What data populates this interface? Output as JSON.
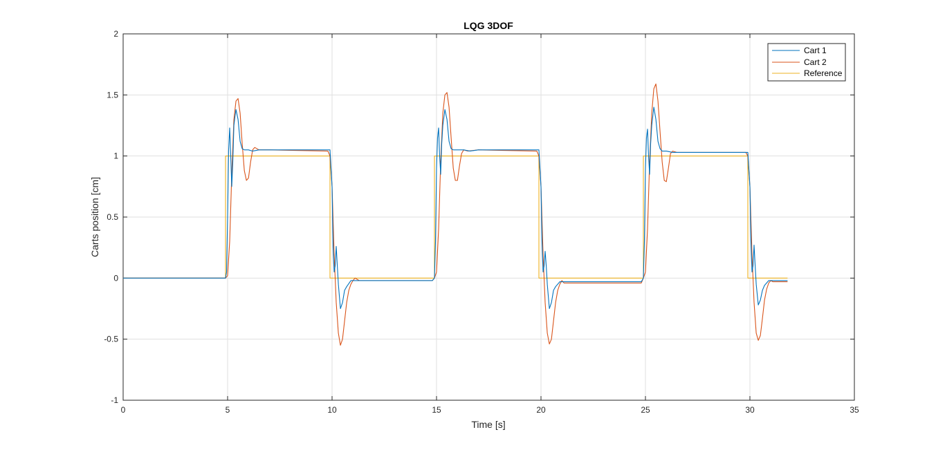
{
  "chart_data": {
    "type": "line",
    "title": "LQG 3DOF",
    "xlabel": "Time [s]",
    "ylabel": "Carts position [cm]",
    "xlim": [
      0,
      35
    ],
    "ylim": [
      -1,
      2
    ],
    "xticks": [
      0,
      5,
      10,
      15,
      20,
      25,
      30,
      35
    ],
    "yticks": [
      -1,
      -0.5,
      0,
      0.5,
      1,
      1.5,
      2
    ],
    "xtick_labels": [
      "0",
      "5",
      "10",
      "15",
      "20",
      "25",
      "30",
      "35"
    ],
    "ytick_labels": [
      "-1",
      "-0.5",
      "0",
      "0.5",
      "1",
      "1.5",
      "2"
    ],
    "grid": true,
    "legend_position": "top-right",
    "series": [
      {
        "name": "Cart 1",
        "color": "#0072BD",
        "x": [
          0,
          4.9,
          4.95,
          5.0,
          5.05,
          5.1,
          5.15,
          5.2,
          5.25,
          5.3,
          5.35,
          5.4,
          5.5,
          5.6,
          5.7,
          5.8,
          6.0,
          6.2,
          6.5,
          7.0,
          9.8,
          9.9,
          10.0,
          10.05,
          10.1,
          10.15,
          10.2,
          10.25,
          10.3,
          10.4,
          10.5,
          10.6,
          10.7,
          10.9,
          11.2,
          14.8,
          14.9,
          14.95,
          15.0,
          15.05,
          15.1,
          15.15,
          15.2,
          15.25,
          15.3,
          15.4,
          15.5,
          15.6,
          15.7,
          15.8,
          16.0,
          16.3,
          16.6,
          17.0,
          19.8,
          19.9,
          20.0,
          20.05,
          20.1,
          20.15,
          20.2,
          20.25,
          20.3,
          20.4,
          20.5,
          20.6,
          20.7,
          20.9,
          21.2,
          24.8,
          24.9,
          24.95,
          25.0,
          25.05,
          25.1,
          25.15,
          25.2,
          25.25,
          25.3,
          25.4,
          25.5,
          25.6,
          25.7,
          25.8,
          26.0,
          26.3,
          26.6,
          27.0,
          29.8,
          29.9,
          30.0,
          30.05,
          30.1,
          30.15,
          30.2,
          30.25,
          30.3,
          30.4,
          30.5,
          30.6,
          30.7,
          30.9,
          31.2,
          31.8
        ],
        "y": [
          0,
          0,
          0.05,
          0.5,
          1.05,
          1.23,
          1.0,
          0.75,
          0.95,
          1.25,
          1.32,
          1.38,
          1.3,
          1.12,
          1.06,
          1.05,
          1.05,
          1.04,
          1.05,
          1.05,
          1.05,
          1.05,
          0.75,
          0.25,
          0.05,
          0.1,
          0.26,
          0.1,
          -0.05,
          -0.25,
          -0.2,
          -0.1,
          -0.07,
          -0.02,
          -0.02,
          -0.02,
          0.0,
          0.3,
          0.9,
          1.15,
          1.23,
          1.0,
          0.85,
          1.1,
          1.25,
          1.38,
          1.3,
          1.12,
          1.06,
          1.05,
          1.05,
          1.05,
          1.04,
          1.05,
          1.05,
          1.05,
          0.75,
          0.3,
          0.05,
          0.1,
          0.22,
          0.1,
          -0.05,
          -0.25,
          -0.2,
          -0.1,
          -0.07,
          -0.03,
          -0.03,
          -0.03,
          0.0,
          0.3,
          0.9,
          1.15,
          1.22,
          1.0,
          0.85,
          1.1,
          1.25,
          1.4,
          1.3,
          1.12,
          1.06,
          1.04,
          1.04,
          1.03,
          1.03,
          1.03,
          1.03,
          1.03,
          0.75,
          0.3,
          0.05,
          0.1,
          0.27,
          0.1,
          -0.05,
          -0.22,
          -0.18,
          -0.1,
          -0.06,
          -0.02,
          -0.02,
          -0.02
        ]
      },
      {
        "name": "Cart 2",
        "color": "#D95319",
        "x": [
          0,
          4.9,
          5.0,
          5.1,
          5.2,
          5.3,
          5.4,
          5.5,
          5.6,
          5.7,
          5.8,
          5.9,
          6.0,
          6.1,
          6.2,
          6.3,
          6.5,
          7.0,
          9.8,
          9.9,
          10.0,
          10.1,
          10.2,
          10.3,
          10.4,
          10.5,
          10.6,
          10.7,
          10.8,
          10.9,
          11.0,
          11.1,
          11.3,
          11.6,
          14.8,
          14.9,
          15.0,
          15.1,
          15.2,
          15.3,
          15.4,
          15.5,
          15.6,
          15.7,
          15.8,
          15.9,
          16.0,
          16.1,
          16.2,
          16.3,
          16.5,
          17.0,
          19.8,
          19.9,
          20.0,
          20.1,
          20.2,
          20.3,
          20.4,
          20.5,
          20.6,
          20.7,
          20.8,
          20.9,
          21.0,
          21.1,
          21.3,
          21.6,
          24.8,
          24.9,
          25.0,
          25.1,
          25.2,
          25.3,
          25.4,
          25.5,
          25.6,
          25.7,
          25.8,
          25.9,
          26.0,
          26.1,
          26.2,
          26.3,
          26.5,
          27.0,
          29.8,
          29.9,
          30.0,
          30.1,
          30.2,
          30.3,
          30.4,
          30.5,
          30.6,
          30.7,
          30.8,
          30.9,
          31.0,
          31.1,
          31.3,
          31.8
        ],
        "y": [
          0,
          0,
          0.02,
          0.3,
          0.85,
          1.3,
          1.45,
          1.47,
          1.35,
          1.1,
          0.88,
          0.8,
          0.82,
          0.95,
          1.05,
          1.07,
          1.05,
          1.05,
          1.04,
          1.0,
          0.75,
          0.2,
          -0.2,
          -0.45,
          -0.55,
          -0.5,
          -0.35,
          -0.2,
          -0.1,
          -0.05,
          -0.02,
          0.0,
          -0.02,
          -0.02,
          -0.02,
          0.0,
          0.05,
          0.4,
          0.95,
          1.35,
          1.5,
          1.52,
          1.4,
          1.15,
          0.9,
          0.8,
          0.8,
          0.92,
          1.02,
          1.05,
          1.04,
          1.05,
          1.04,
          1.0,
          0.75,
          0.2,
          -0.2,
          -0.45,
          -0.54,
          -0.5,
          -0.35,
          -0.2,
          -0.1,
          -0.05,
          -0.02,
          -0.04,
          -0.04,
          -0.04,
          -0.04,
          0.0,
          0.05,
          0.4,
          0.95,
          1.35,
          1.55,
          1.59,
          1.45,
          1.2,
          0.95,
          0.8,
          0.79,
          0.9,
          1.02,
          1.04,
          1.03,
          1.03,
          1.03,
          1.0,
          0.75,
          0.2,
          -0.2,
          -0.45,
          -0.51,
          -0.47,
          -0.33,
          -0.18,
          -0.09,
          -0.04,
          -0.02,
          -0.03,
          -0.03,
          -0.03
        ]
      },
      {
        "name": "Reference",
        "color": "#EDB120",
        "x": [
          0,
          4.9,
          4.9,
          9.9,
          9.9,
          14.9,
          14.9,
          19.9,
          19.9,
          24.9,
          24.9,
          29.9,
          29.9,
          31.8
        ],
        "y": [
          0,
          0,
          1,
          1,
          0,
          0,
          1,
          1,
          0,
          0,
          1,
          1,
          0,
          0
        ]
      }
    ]
  }
}
